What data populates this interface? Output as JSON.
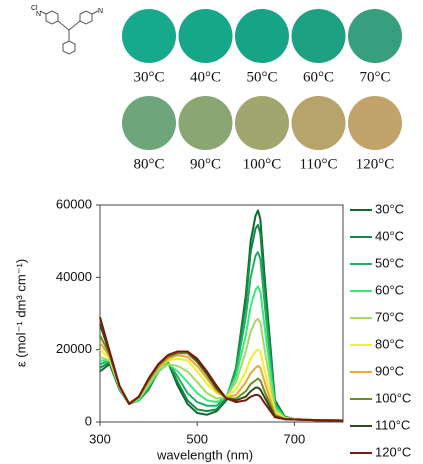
{
  "structure": {
    "labels": [
      "Cl",
      "N",
      "N"
    ]
  },
  "swatches": [
    {
      "label": "30°C",
      "color": "#17a98c"
    },
    {
      "label": "40°C",
      "color": "#16a789"
    },
    {
      "label": "50°C",
      "color": "#15a586"
    },
    {
      "label": "60°C",
      "color": "#1ea183"
    },
    {
      "label": "70°C",
      "color": "#379e7e"
    },
    {
      "label": "80°C",
      "color": "#6ca67a"
    },
    {
      "label": "90°C",
      "color": "#8aa672"
    },
    {
      "label": "100°C",
      "color": "#a0a66e"
    },
    {
      "label": "110°C",
      "color": "#b6a46a"
    },
    {
      "label": "120°C",
      "color": "#c2a46a"
    }
  ],
  "chart_data": {
    "type": "line",
    "y_label": "ε (mol⁻¹ dm³ cm⁻¹)",
    "x_label": "wavelength (nm)",
    "x": [
      300,
      320,
      340,
      360,
      380,
      400,
      420,
      440,
      460,
      480,
      500,
      520,
      540,
      560,
      580,
      600,
      610,
      620,
      625,
      630,
      640,
      660,
      680,
      700,
      750,
      800
    ],
    "xlim": [
      300,
      800
    ],
    "xticks": [
      300,
      500,
      700
    ],
    "ylim": [
      0,
      60000
    ],
    "yticks": [
      0,
      20000,
      40000,
      60000
    ],
    "legend": "right",
    "series": [
      {
        "name": "30°C",
        "color": "#0b6b2e",
        "values": [
          14000,
          16000,
          9000,
          5000,
          6000,
          9000,
          14000,
          16500,
          10000,
          5000,
          2500,
          2000,
          3000,
          6000,
          15000,
          35000,
          50000,
          57000,
          58500,
          56000,
          38000,
          6000,
          1500,
          800,
          500,
          400
        ]
      },
      {
        "name": "40°C",
        "color": "#148a45",
        "values": [
          15000,
          16500,
          9000,
          5000,
          6000,
          9000,
          14000,
          16500,
          11000,
          6000,
          3500,
          3000,
          3500,
          6500,
          15000,
          33000,
          47000,
          53500,
          54500,
          52000,
          35000,
          5500,
          1400,
          800,
          500,
          400
        ]
      },
      {
        "name": "50°C",
        "color": "#20b063",
        "values": [
          16000,
          17000,
          9500,
          5000,
          6000,
          9500,
          14000,
          16500,
          12500,
          8000,
          5500,
          4500,
          4500,
          7000,
          14000,
          29000,
          40000,
          46000,
          47000,
          45000,
          31000,
          5000,
          1300,
          800,
          500,
          400
        ]
      },
      {
        "name": "60°C",
        "color": "#3de87a",
        "values": [
          17000,
          17000,
          9500,
          5000,
          6200,
          10000,
          14000,
          16000,
          14000,
          11000,
          8000,
          6000,
          5500,
          7000,
          12500,
          24000,
          32000,
          36500,
          37500,
          36000,
          25000,
          4200,
          1200,
          800,
          500,
          400
        ]
      },
      {
        "name": "70°C",
        "color": "#a6d96a",
        "values": [
          18000,
          17000,
          9500,
          5000,
          6500,
          10500,
          14500,
          16000,
          15500,
          14000,
          11000,
          8000,
          6500,
          7000,
          11000,
          19500,
          25000,
          28000,
          28500,
          27500,
          19000,
          3500,
          1100,
          800,
          500,
          400
        ]
      },
      {
        "name": "80°C",
        "color": "#f2ef2e",
        "values": [
          20000,
          17500,
          10000,
          5200,
          7000,
          11000,
          15000,
          17000,
          17500,
          17000,
          14000,
          10500,
          8000,
          7000,
          9000,
          14000,
          17500,
          19500,
          20000,
          19500,
          13500,
          2800,
          1000,
          800,
          500,
          400
        ]
      },
      {
        "name": "90°C",
        "color": "#f0a830",
        "values": [
          22000,
          18000,
          10000,
          5200,
          7000,
          11000,
          15000,
          17500,
          18500,
          18000,
          15500,
          12000,
          8500,
          6800,
          7500,
          11000,
          13500,
          15000,
          15500,
          15000,
          10500,
          2200,
          900,
          700,
          500,
          400
        ]
      },
      {
        "name": "100°C",
        "color": "#6b8e23",
        "values": [
          24000,
          18500,
          10000,
          5000,
          7000,
          11500,
          15500,
          18000,
          19000,
          19000,
          16500,
          13000,
          9000,
          6500,
          6500,
          8500,
          10500,
          11500,
          12000,
          11500,
          8000,
          1800,
          800,
          700,
          500,
          400
        ]
      },
      {
        "name": "110°C",
        "color": "#2e4a1e",
        "values": [
          27000,
          19000,
          10000,
          5000,
          7000,
          12000,
          16000,
          18500,
          19500,
          19500,
          17000,
          13500,
          9500,
          6500,
          6000,
          7000,
          8500,
          9500,
          9500,
          9000,
          6500,
          1500,
          800,
          700,
          500,
          400
        ]
      },
      {
        "name": "120°C",
        "color": "#7a1a0a",
        "values": [
          29000,
          19500,
          10000,
          5000,
          7000,
          12000,
          16000,
          18500,
          19500,
          19500,
          17500,
          14000,
          10000,
          6500,
          5500,
          6000,
          7000,
          7500,
          7500,
          7000,
          5000,
          1300,
          800,
          700,
          500,
          400
        ]
      }
    ]
  }
}
